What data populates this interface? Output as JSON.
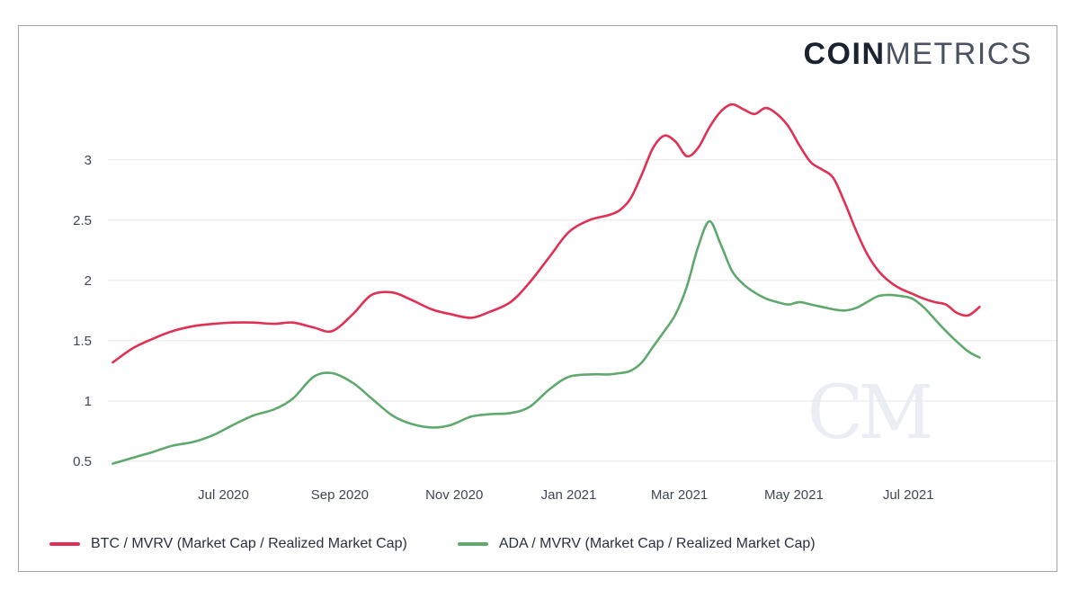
{
  "page": {
    "logo": {
      "part1": "COIN",
      "part2": "METRICS"
    },
    "watermark": "CM"
  },
  "chart_data": {
    "type": "line",
    "title": "",
    "xlabel": "",
    "ylabel": "",
    "grid": "horizontal",
    "legend_position": "bottom-left",
    "ylim": [
      0.35,
      3.58
    ],
    "yticks": [
      0.5,
      1,
      1.5,
      2,
      2.5,
      3
    ],
    "xlim": [
      "2020-04-28",
      "2021-09-18"
    ],
    "xticks": [
      {
        "label": "Jul 2020",
        "date": "2020-07-01"
      },
      {
        "label": "Sep 2020",
        "date": "2020-09-01"
      },
      {
        "label": "Nov 2020",
        "date": "2020-11-01"
      },
      {
        "label": "Jan 2021",
        "date": "2021-01-01"
      },
      {
        "label": "Mar 2021",
        "date": "2021-03-01"
      },
      {
        "label": "May 2021",
        "date": "2021-05-01"
      },
      {
        "label": "Jul 2021",
        "date": "2021-07-01"
      }
    ],
    "x": [
      "2020-05-03",
      "2020-05-14",
      "2020-05-25",
      "2020-06-04",
      "2020-06-15",
      "2020-06-26",
      "2020-07-06",
      "2020-07-17",
      "2020-07-28",
      "2020-08-07",
      "2020-08-18",
      "2020-08-28",
      "2020-09-08",
      "2020-09-18",
      "2020-09-29",
      "2020-10-09",
      "2020-10-20",
      "2020-10-30",
      "2020-11-10",
      "2020-11-20",
      "2020-12-01",
      "2020-12-11",
      "2020-12-22",
      "2021-01-01",
      "2021-01-12",
      "2021-01-22",
      "2021-01-28",
      "2021-02-03",
      "2021-02-09",
      "2021-02-15",
      "2021-02-21",
      "2021-02-27",
      "2021-03-05",
      "2021-03-11",
      "2021-03-17",
      "2021-03-23",
      "2021-03-29",
      "2021-04-04",
      "2021-04-10",
      "2021-04-16",
      "2021-04-22",
      "2021-04-28",
      "2021-05-04",
      "2021-05-10",
      "2021-05-16",
      "2021-05-22",
      "2021-05-28",
      "2021-06-03",
      "2021-06-09",
      "2021-06-15",
      "2021-06-21",
      "2021-06-27",
      "2021-07-03",
      "2021-07-09",
      "2021-07-15",
      "2021-07-21",
      "2021-07-27",
      "2021-08-02",
      "2021-08-08"
    ],
    "series": [
      {
        "id": "btc",
        "name": "BTC / MVRV (Market Cap / Realized Market Cap)",
        "color": "#e03154",
        "values": [
          1.32,
          1.44,
          1.52,
          1.58,
          1.62,
          1.64,
          1.65,
          1.65,
          1.64,
          1.65,
          1.61,
          1.58,
          1.72,
          1.88,
          1.9,
          1.84,
          1.76,
          1.72,
          1.69,
          1.74,
          1.82,
          1.98,
          2.2,
          2.4,
          2.5,
          2.54,
          2.58,
          2.68,
          2.88,
          3.1,
          3.2,
          3.15,
          3.03,
          3.1,
          3.27,
          3.4,
          3.46,
          3.42,
          3.38,
          3.43,
          3.38,
          3.28,
          3.12,
          2.98,
          2.92,
          2.85,
          2.65,
          2.42,
          2.22,
          2.08,
          1.99,
          1.93,
          1.89,
          1.85,
          1.82,
          1.8,
          1.73,
          1.71,
          1.78
        ]
      },
      {
        "id": "ada",
        "name": "ADA / MVRV (Market Cap / Realized Market Cap)",
        "color": "#60a96e",
        "values": [
          0.48,
          0.53,
          0.58,
          0.63,
          0.66,
          0.72,
          0.8,
          0.88,
          0.93,
          1.02,
          1.2,
          1.23,
          1.15,
          1.02,
          0.88,
          0.81,
          0.78,
          0.8,
          0.87,
          0.89,
          0.9,
          0.95,
          1.1,
          1.2,
          1.22,
          1.22,
          1.23,
          1.25,
          1.32,
          1.45,
          1.58,
          1.72,
          1.95,
          2.28,
          2.49,
          2.3,
          2.08,
          1.97,
          1.9,
          1.85,
          1.82,
          1.8,
          1.82,
          1.8,
          1.78,
          1.76,
          1.75,
          1.77,
          1.82,
          1.87,
          1.88,
          1.87,
          1.85,
          1.78,
          1.68,
          1.58,
          1.49,
          1.41,
          1.36
        ]
      }
    ]
  }
}
